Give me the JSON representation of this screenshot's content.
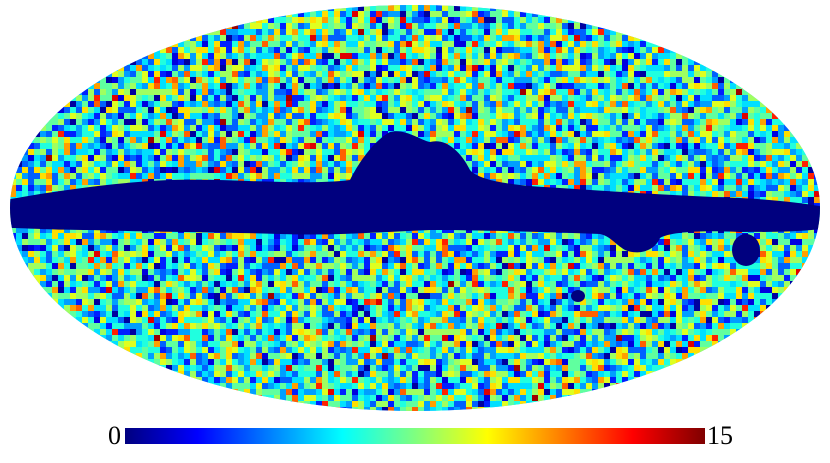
{
  "colorbar": {
    "lim": [
      0,
      15
    ],
    "ticks": [
      0,
      15
    ]
  }
}
